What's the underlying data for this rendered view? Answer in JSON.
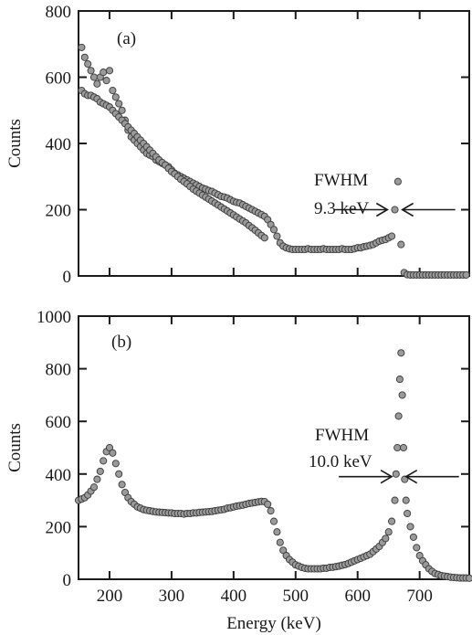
{
  "chart_data": [
    {
      "type": "scatter",
      "panel_label": "(a)",
      "xlabel": "",
      "ylabel": "Counts",
      "xlim": [
        150,
        780
      ],
      "ylim": [
        0,
        800
      ],
      "x_ticks": [
        200,
        300,
        400,
        500,
        600,
        700
      ],
      "y_ticks": [
        0,
        200,
        400,
        600,
        800
      ],
      "y_tick_labels": [
        "0",
        "200",
        "400",
        "600",
        "800"
      ],
      "annotation": {
        "line1": "FWHM",
        "line2": "9.3 keV",
        "arrow_left_x": 648,
        "arrow_right_x": 672,
        "arrow_y": 200
      },
      "series": [
        {
          "x": [
            155,
            160,
            165,
            170,
            175,
            180,
            185,
            190,
            195,
            200,
            205,
            210,
            215,
            220,
            225,
            230,
            235,
            240,
            245,
            250,
            255,
            260,
            265,
            270,
            275,
            280,
            285,
            290,
            295,
            300,
            305,
            310,
            315,
            320,
            325,
            330,
            335,
            340,
            345,
            350,
            355,
            360,
            365,
            370,
            375,
            380,
            385,
            390,
            395,
            400,
            405,
            410,
            415,
            420,
            425,
            430,
            435,
            440,
            445,
            450,
            455,
            460,
            465,
            470,
            475,
            480,
            485,
            490,
            495,
            500,
            505,
            510,
            515,
            520,
            525,
            530,
            535,
            540,
            545,
            550,
            555,
            560,
            565,
            570,
            575,
            580,
            585,
            590,
            595,
            600,
            605,
            610,
            615,
            620,
            625,
            630,
            635,
            640,
            645,
            650,
            655,
            660,
            665,
            670,
            675,
            680,
            685,
            690,
            695,
            700,
            705,
            710,
            715,
            720,
            725,
            730,
            735,
            740,
            745,
            750,
            755,
            760,
            765,
            770,
            775
          ],
          "y": [
            690,
            660,
            640,
            620,
            600,
            580,
            600,
            615,
            590,
            620,
            560,
            540,
            520,
            500,
            470,
            440,
            420,
            410,
            400,
            390,
            380,
            370,
            365,
            360,
            350,
            345,
            340,
            335,
            330,
            320,
            310,
            305,
            300,
            295,
            290,
            285,
            280,
            275,
            270,
            265,
            262,
            258,
            255,
            250,
            245,
            240,
            238,
            235,
            230,
            225,
            222,
            220,
            215,
            210,
            205,
            200,
            195,
            190,
            185,
            180,
            170,
            155,
            140,
            120,
            100,
            90,
            85,
            82,
            80,
            80,
            80,
            80,
            80,
            82,
            80,
            80,
            80,
            80,
            82,
            80,
            80,
            80,
            80,
            80,
            82,
            80,
            80,
            80,
            82,
            85,
            85,
            88,
            90,
            92,
            95,
            100,
            105,
            108,
            110,
            115,
            120,
            200,
            285,
            95,
            10,
            4,
            3,
            3,
            3,
            3,
            3,
            3,
            3,
            3,
            3,
            3,
            3,
            3,
            3,
            3,
            3,
            3,
            3,
            3,
            3
          ]
        },
        {
          "x": [
            155,
            160,
            165,
            170,
            175,
            180,
            185,
            190,
            195,
            200,
            205,
            210,
            215,
            220,
            225,
            230,
            235,
            240,
            245,
            250,
            255,
            260,
            265,
            270,
            275,
            280,
            285,
            290,
            295,
            300,
            305,
            310,
            315,
            320,
            325,
            330,
            335,
            340,
            345,
            350,
            355,
            360,
            365,
            370,
            375,
            380,
            385,
            390,
            395,
            400,
            405,
            410,
            415,
            420,
            425,
            430,
            435,
            440,
            445,
            450
          ],
          "y": [
            560,
            550,
            545,
            545,
            540,
            535,
            525,
            520,
            515,
            510,
            500,
            490,
            480,
            470,
            460,
            450,
            440,
            430,
            420,
            410,
            400,
            390,
            380,
            370,
            360,
            350,
            342,
            335,
            325,
            315,
            308,
            300,
            292,
            285,
            278,
            270,
            262,
            256,
            250,
            244,
            238,
            232,
            226,
            220,
            214,
            208,
            202,
            196,
            190,
            184,
            178,
            172,
            166,
            160,
            152,
            145,
            138,
            130,
            122,
            115
          ]
        }
      ]
    },
    {
      "type": "scatter",
      "panel_label": "(b)",
      "xlabel": "Energy (keV)",
      "ylabel": "Counts",
      "xlim": [
        150,
        780
      ],
      "ylim": [
        0,
        1000
      ],
      "x_ticks": [
        200,
        300,
        400,
        500,
        600,
        700
      ],
      "x_tick_labels": [
        "200",
        "300",
        "400",
        "500",
        "600",
        "700"
      ],
      "y_ticks": [
        0,
        200,
        400,
        600,
        800,
        1000
      ],
      "y_tick_labels": [
        "0",
        "200",
        "400",
        "600",
        "800",
        "1000"
      ],
      "annotation": {
        "line1": "FWHM",
        "line2": "10.0 keV",
        "arrow_left_x": 655,
        "arrow_right_x": 678,
        "arrow_y": 390
      },
      "series": [
        {
          "x": [
            150,
            155,
            160,
            165,
            170,
            175,
            180,
            185,
            190,
            195,
            200,
            205,
            210,
            215,
            220,
            225,
            230,
            235,
            240,
            245,
            250,
            255,
            260,
            265,
            270,
            275,
            280,
            285,
            290,
            295,
            300,
            305,
            310,
            315,
            320,
            325,
            330,
            335,
            340,
            345,
            350,
            355,
            360,
            365,
            370,
            375,
            380,
            385,
            390,
            395,
            400,
            405,
            410,
            415,
            420,
            425,
            430,
            435,
            440,
            445,
            450,
            455,
            460,
            465,
            470,
            475,
            480,
            485,
            490,
            495,
            500,
            505,
            510,
            515,
            520,
            525,
            530,
            535,
            540,
            545,
            550,
            555,
            560,
            565,
            570,
            575,
            580,
            585,
            590,
            595,
            600,
            605,
            610,
            615,
            620,
            625,
            630,
            635,
            640,
            645,
            650,
            655,
            660,
            662,
            664,
            666,
            668,
            670,
            672,
            674,
            676,
            678,
            680,
            685,
            690,
            695,
            700,
            705,
            710,
            715,
            720,
            725,
            730,
            735,
            740,
            745,
            750,
            755,
            760,
            765,
            770,
            775,
            780
          ],
          "y": [
            300,
            305,
            310,
            320,
            335,
            350,
            380,
            410,
            450,
            485,
            500,
            480,
            440,
            400,
            360,
            330,
            310,
            295,
            285,
            275,
            270,
            265,
            262,
            260,
            258,
            256,
            255,
            254,
            253,
            252,
            252,
            250,
            250,
            250,
            248,
            250,
            250,
            252,
            252,
            254,
            255,
            256,
            257,
            258,
            260,
            262,
            264,
            266,
            270,
            272,
            275,
            278,
            280,
            282,
            285,
            288,
            290,
            292,
            294,
            296,
            295,
            285,
            260,
            220,
            180,
            140,
            110,
            90,
            75,
            65,
            55,
            50,
            45,
            42,
            40,
            40,
            40,
            40,
            40,
            42,
            42,
            45,
            46,
            48,
            50,
            53,
            56,
            60,
            65,
            70,
            75,
            80,
            85,
            90,
            95,
            105,
            115,
            125,
            140,
            155,
            180,
            220,
            300,
            400,
            500,
            620,
            760,
            860,
            700,
            500,
            380,
            300,
            250,
            200,
            160,
            120,
            90,
            70,
            55,
            40,
            30,
            22,
            18,
            14,
            12,
            10,
            8,
            7,
            6,
            5,
            5,
            5,
            4
          ]
        }
      ]
    }
  ]
}
